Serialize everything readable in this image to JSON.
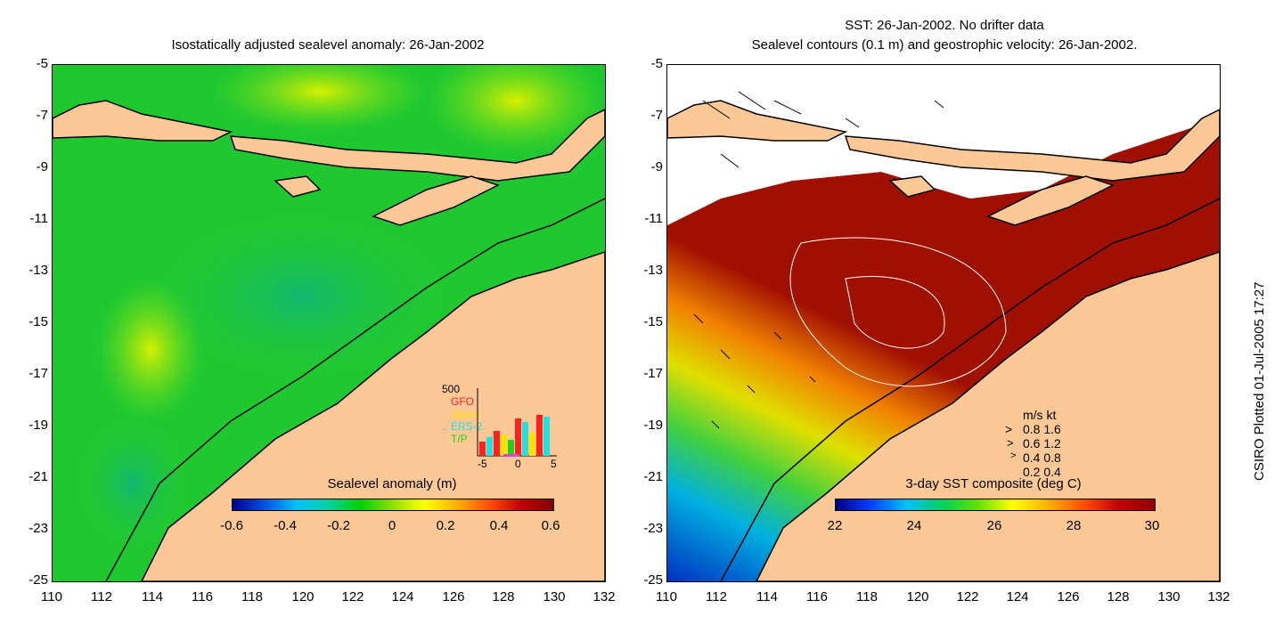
{
  "left_panel": {
    "title": "Isostatically adjusted sealevel anomaly: 26-Jan-2002",
    "colorbar": {
      "label": "Sealevel anomaly (m)",
      "ticks": [
        "-0.6",
        "-0.4",
        "-0.2",
        "0",
        "0.2",
        "0.4",
        "0.6"
      ],
      "colors": [
        "#00008b",
        "#0050e0",
        "#00c0ff",
        "#00d0a0",
        "#00d000",
        "#90e000",
        "#ffff00",
        "#ffb000",
        "#ff5000",
        "#c00000",
        "#800000"
      ]
    },
    "inset": {
      "count_label": "500",
      "legend": [
        {
          "name": "GFO",
          "color": "#ff2020"
        },
        {
          "name": "Jason",
          "color": "#ffe000"
        },
        {
          "name": "ERS-2",
          "color": "#20e0e0"
        },
        {
          "name": "T/P",
          "color": "#20d020"
        }
      ],
      "x_ticks": [
        "-5",
        "0",
        "5"
      ]
    }
  },
  "right_panel": {
    "title_line1": "SST: 26-Jan-2002. No drifter data",
    "title_line2": "Sealevel contours (0.1 m) and geostrophic velocity: 26-Jan-2002.",
    "colorbar": {
      "label": "3-day SST composite (deg C)",
      "ticks": [
        "22",
        "24",
        "26",
        "28",
        "30"
      ],
      "colors": [
        "#000080",
        "#0040ff",
        "#00c0ff",
        "#00d060",
        "#60e000",
        "#ffff00",
        "#ffb000",
        "#ff5000",
        "#c00000",
        "#900000"
      ]
    },
    "velocity_legend": {
      "header": "m/s  kt",
      "rows": [
        "0.8  1.6",
        "0.6  1.2",
        "0.4  0.8",
        "0.2  0.4"
      ]
    }
  },
  "axes": {
    "y_ticks": [
      "-5",
      "-7",
      "-9",
      "-11",
      "-13",
      "-15",
      "-17",
      "-19",
      "-21",
      "-23",
      "-25"
    ],
    "x_ticks": [
      "110",
      "112",
      "114",
      "116",
      "118",
      "120",
      "122",
      "124",
      "126",
      "128",
      "130",
      "132"
    ]
  },
  "credit": "CSIRO Plotted 01-Jul-2005 17:27",
  "colors": {
    "land": "#fcc896",
    "ocean_green": "#10d010",
    "sst_red": "#a01000"
  }
}
